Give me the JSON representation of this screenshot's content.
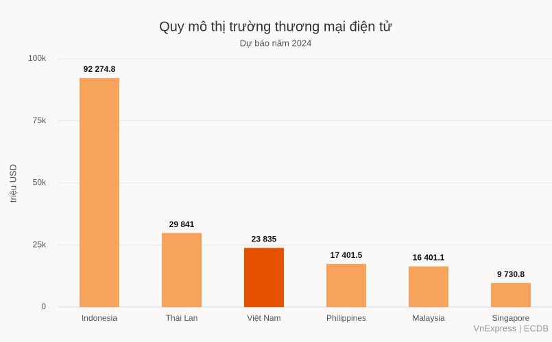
{
  "chart_data": {
    "type": "bar",
    "title": "Quy mô thị trường thương mại điện tử",
    "subtitle": "Dự báo năm 2024",
    "y_label": "triệu USD",
    "source": "VnExpress | ECDB",
    "categories": [
      "Indonesia",
      "Thái Lan",
      "Việt Nam",
      "Philippines",
      "Malaysia",
      "Singapore"
    ],
    "values": [
      92274.8,
      29841,
      23835,
      17401.5,
      16401.1,
      9730.8
    ],
    "value_labels": [
      "92 274.8",
      "29 841",
      "23 835",
      "17 401.5",
      "16 401.1",
      "9 730.8"
    ],
    "colors": [
      "#f7a35c",
      "#f7a35c",
      "#e65100",
      "#f7a35c",
      "#f7a35c",
      "#f7a35c"
    ],
    "ylim": [
      0,
      100000
    ],
    "yticks": [
      0,
      {
        "value": 25000,
        "label": "25k"
      },
      {
        "value": 50000,
        "label": "50k"
      },
      {
        "value": 75000,
        "label": "75k"
      },
      {
        "value": 100000,
        "label": "100k"
      }
    ],
    "grid": true
  }
}
